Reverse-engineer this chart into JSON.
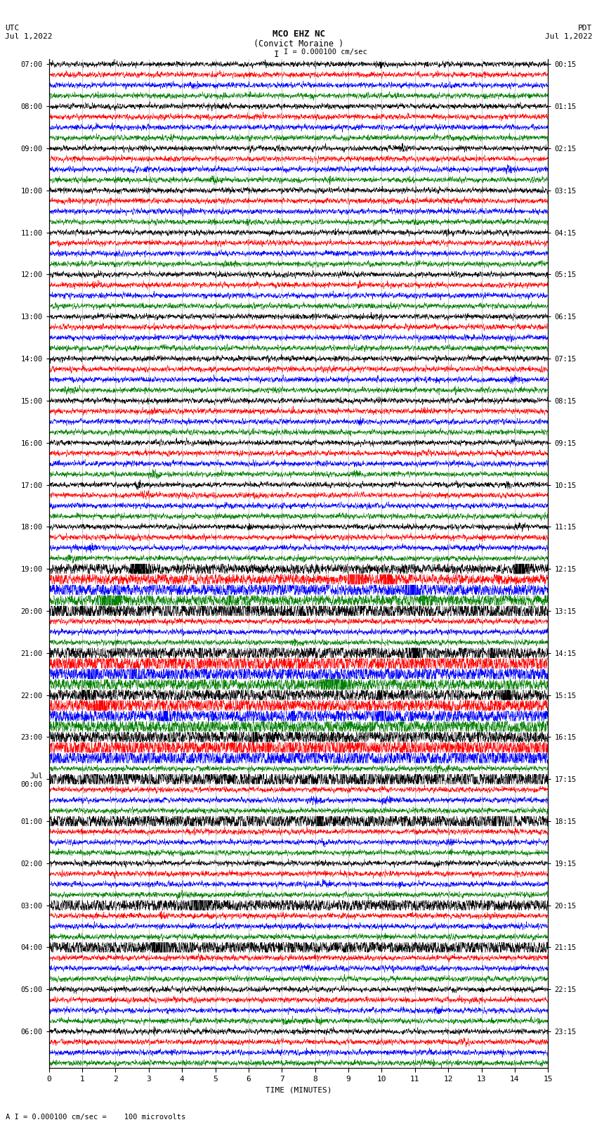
{
  "title_line1": "MCO EHZ NC",
  "title_line2": "(Convict Moraine )",
  "scale_text": "I = 0.000100 cm/sec",
  "left_label": "UTC\nJul 1,2022",
  "right_label": "PDT\nJul 1,2022",
  "bottom_label": "TIME (MINUTES)",
  "scale_note": "A I = 0.000100 cm/sec =    100 microvolts",
  "num_traces": 96,
  "colors": [
    "black",
    "red",
    "blue",
    "green"
  ],
  "bg_color": "white",
  "fig_width": 8.5,
  "fig_height": 16.13,
  "dpi": 100,
  "xmin": 0,
  "xmax": 15,
  "left_utc_times": [
    "07:00",
    "",
    "",
    "",
    "08:00",
    "",
    "",
    "",
    "09:00",
    "",
    "",
    "",
    "10:00",
    "",
    "",
    "",
    "11:00",
    "",
    "",
    "",
    "12:00",
    "",
    "",
    "",
    "13:00",
    "",
    "",
    "",
    "14:00",
    "",
    "",
    "",
    "15:00",
    "",
    "",
    "",
    "16:00",
    "",
    "",
    "",
    "17:00",
    "",
    "",
    "",
    "18:00",
    "",
    "",
    "",
    "19:00",
    "",
    "",
    "",
    "20:00",
    "",
    "",
    "",
    "21:00",
    "",
    "",
    "",
    "22:00",
    "",
    "",
    "",
    "23:00",
    "",
    "",
    "",
    "Jul\n00:00",
    "",
    "",
    "",
    "01:00",
    "",
    "",
    "",
    "02:00",
    "",
    "",
    "",
    "03:00",
    "",
    "",
    "",
    "04:00",
    "",
    "",
    "",
    "05:00",
    "",
    "",
    "",
    "06:00",
    "",
    "",
    ""
  ],
  "right_pdt_times": [
    "00:15",
    "",
    "",
    "",
    "01:15",
    "",
    "",
    "",
    "02:15",
    "",
    "",
    "",
    "03:15",
    "",
    "",
    "",
    "04:15",
    "",
    "",
    "",
    "05:15",
    "",
    "",
    "",
    "06:15",
    "",
    "",
    "",
    "07:15",
    "",
    "",
    "",
    "08:15",
    "",
    "",
    "",
    "09:15",
    "",
    "",
    "",
    "10:15",
    "",
    "",
    "",
    "11:15",
    "",
    "",
    "",
    "12:15",
    "",
    "",
    "",
    "13:15",
    "",
    "",
    "",
    "14:15",
    "",
    "",
    "",
    "15:15",
    "",
    "",
    "",
    "16:15",
    "",
    "",
    "",
    "17:15",
    "",
    "",
    "",
    "18:15",
    "",
    "",
    "",
    "19:15",
    "",
    "",
    "",
    "20:15",
    "",
    "",
    "",
    "21:15",
    "",
    "",
    "",
    "22:15",
    "",
    "",
    "",
    "23:15",
    "",
    "",
    ""
  ],
  "active_traces": {
    "48": 8.0,
    "49": 9.0,
    "50": 7.0,
    "51": 5.0,
    "52": 4.0,
    "56": 3.0,
    "57": 4.0,
    "58": 3.5,
    "59": 3.0,
    "60": 3.0,
    "61": 4.0,
    "62": 5.0,
    "63": 3.0,
    "64": 3.0,
    "65": 6.0,
    "66": 7.0,
    "68": 8.0,
    "72": 5.0,
    "80": 6.0,
    "84": 5.0
  }
}
